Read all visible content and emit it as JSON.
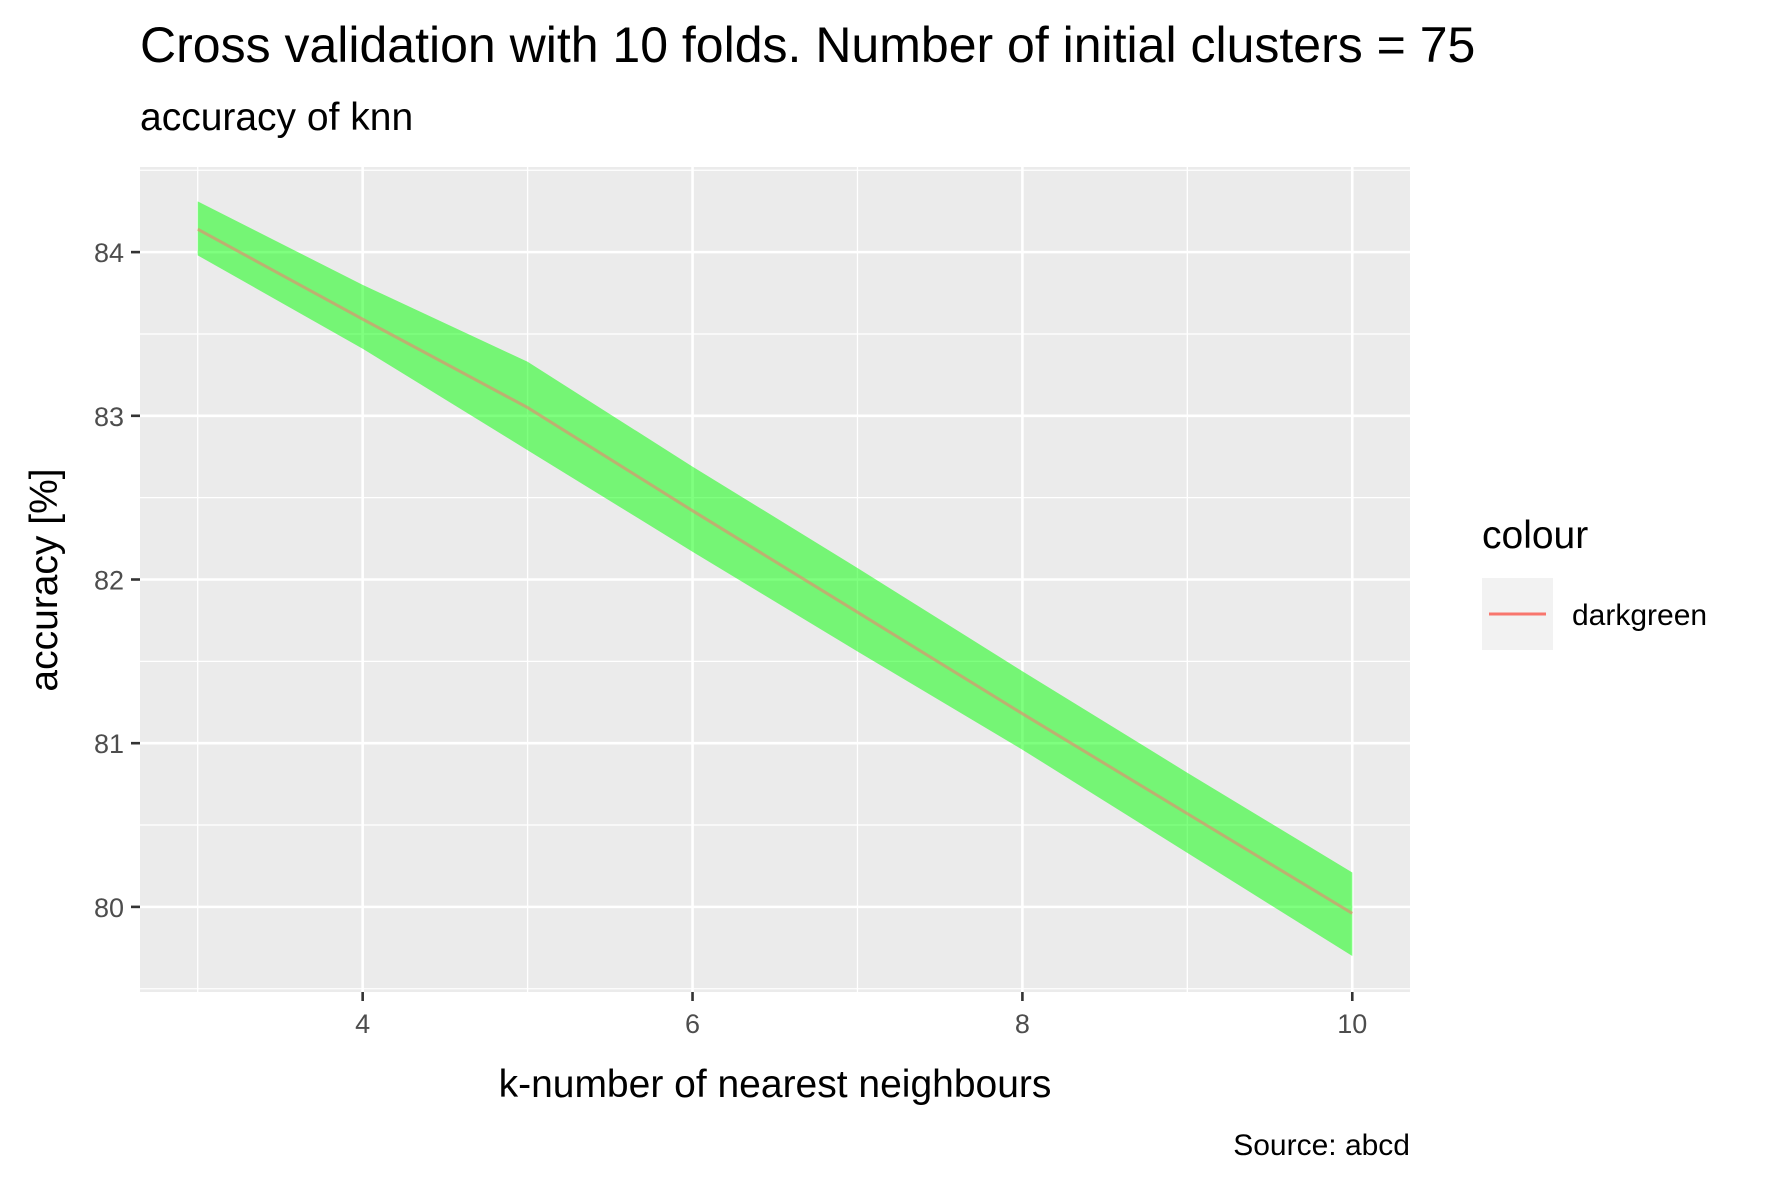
{
  "chart_data": {
    "type": "line",
    "title": "Cross validation with 10 folds. Number of initial clusters =  75",
    "subtitle": "accuracy of knn",
    "xlabel": "k-number of nearest neighbours",
    "ylabel": "accuracy [%]",
    "caption": "Source: abcd",
    "xlim": [
      2.65,
      10.35
    ],
    "ylim": [
      79.48,
      84.52
    ],
    "x_ticks": [
      4,
      6,
      8,
      10
    ],
    "y_ticks": [
      80,
      81,
      82,
      83,
      84
    ],
    "grid": true,
    "legend": {
      "title": "colour",
      "position": "right",
      "entries": [
        {
          "label": "darkgreen",
          "color": "#f8766d"
        }
      ]
    },
    "series": [
      {
        "name": "darkgreen",
        "color": "#f8766d",
        "ribbon_color": "#00ff00",
        "x": [
          3,
          4,
          5,
          6,
          7,
          8,
          9,
          10
        ],
        "y": [
          84.14,
          83.59,
          83.05,
          82.42,
          81.8,
          81.18,
          80.57,
          79.96
        ],
        "ymin": [
          83.98,
          83.41,
          82.79,
          82.17,
          81.56,
          80.96,
          80.33,
          79.7
        ],
        "ymax": [
          84.31,
          83.8,
          83.33,
          82.69,
          82.07,
          81.44,
          80.82,
          80.21
        ]
      }
    ]
  }
}
